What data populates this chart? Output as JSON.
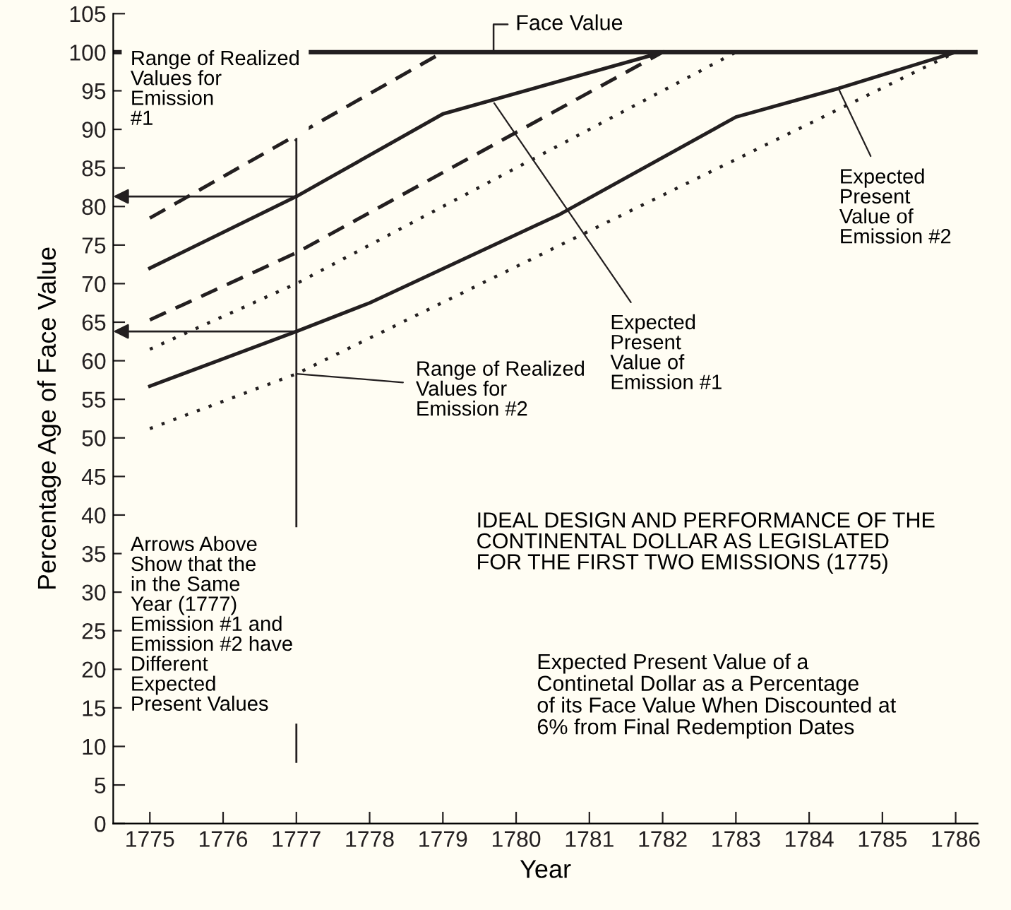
{
  "chart_data": {
    "type": "line",
    "xlabel": "Year",
    "ylabel": "Percentage Age of Face Value",
    "title": "IDEAL DESIGN AND PERFORMANCE OF THE\nCONTINENTAL DOLLAR AS LEGISLATED\nFOR THE FIRST TWO EMISSIONS (1775)",
    "subtitle": "Expected Present Value of a\nContinetal Dollar as a Percentage\nof its Face Value When Discounted at\n6% from Final Redemption Dates",
    "series": [
      {
        "color": "#231f20",
        "line_style": "dashed",
        "x": [
          1775,
          1779
        ],
        "values": [
          78.5,
          100
        ]
      },
      {
        "color": "#231f20",
        "line_style": "solid",
        "x": [
          1775,
          1777,
          1779,
          1782
        ],
        "values": [
          72,
          81.3,
          92,
          100
        ]
      },
      {
        "color": "#231f20",
        "line_style": "dashed",
        "x": [
          1775,
          1777,
          1782
        ],
        "values": [
          65.3,
          74,
          100
        ]
      },
      {
        "color": "#231f20",
        "line_style": "dotted",
        "x": [
          1775,
          1777,
          1783
        ],
        "values": [
          61.5,
          70,
          100
        ]
      },
      {
        "color": "#231f20",
        "line_style": "solid",
        "x": [
          1775,
          1777,
          1778,
          1780.6,
          1783,
          1784.4,
          1786
        ],
        "values": [
          56.7,
          63.8,
          67.5,
          79,
          91.6,
          95.3,
          100
        ]
      },
      {
        "color": "#231f20",
        "line_style": "dotted",
        "x": [
          1775,
          1777,
          1786
        ],
        "values": [
          51.2,
          58.3,
          100
        ]
      }
    ],
    "ref_lines": [
      {
        "axis": "y",
        "value": 100,
        "label": "Face Value",
        "color": "#231f20",
        "line_style": "solid"
      },
      {
        "axis": "x",
        "value": 1777,
        "color": "#231f20",
        "line_style": "solid"
      }
    ],
    "annotations": [
      {
        "text": "Range of Realized\nValues for\nEmission\n#1",
        "x": 1777,
        "y": 88.5
      },
      {
        "text": "Range of Realized\nValues for\nEmission #2",
        "x": 1777,
        "y": 58.3
      },
      {
        "text": "Expected\nPresent\nValue of\nEmission #1",
        "x": 1779.7,
        "y": 93.4
      },
      {
        "text": "Expected\nPresent\nValue of\nEmission #2",
        "x": 1784.4,
        "y": 95.3
      },
      "Arrows Above\nShow that the\nin the Same\nYear (1777)\nEmission #1 and\nEmission #2 have\nDifferent\nExpected\nPresent Values"
    ],
    "xlim": [
      1774.5,
      1786.3
    ],
    "ylim": [
      0,
      105
    ],
    "xticks": [
      1775,
      1776,
      1777,
      1778,
      1779,
      1780,
      1781,
      1782,
      1783,
      1784,
      1785,
      1786
    ],
    "yticks": [
      0,
      5,
      10,
      15,
      20,
      25,
      30,
      35,
      40,
      45,
      50,
      55,
      60,
      65,
      70,
      75,
      80,
      85,
      90,
      95,
      100,
      105
    ],
    "grid": false,
    "legend": false,
    "marker": "none"
  }
}
